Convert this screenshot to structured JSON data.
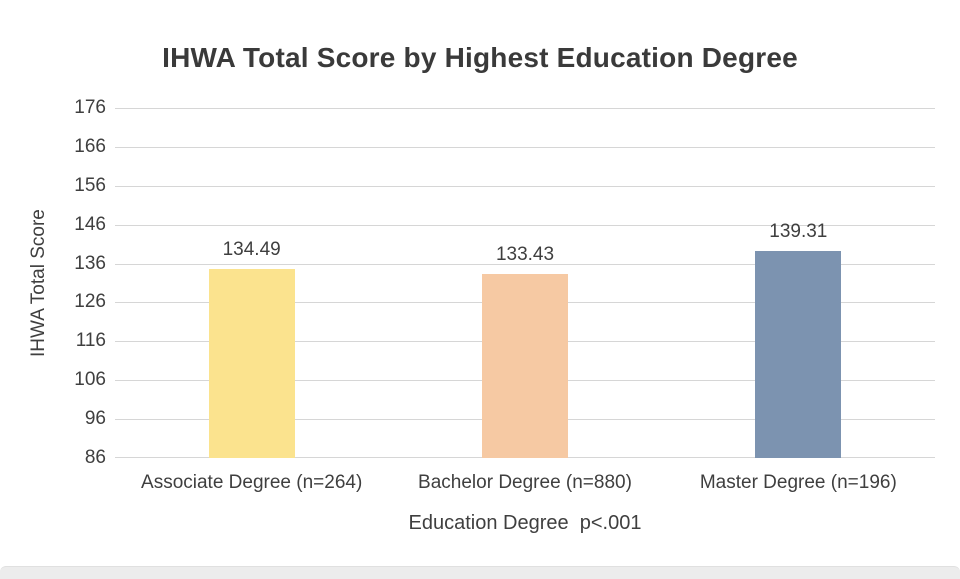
{
  "chart_data": {
    "type": "bar",
    "title": "IHWA Total Score by Highest Education Degree",
    "categories": [
      "Associate Degree (n=264)",
      "Bachelor Degree (n=880)",
      "Master Degree (n=196)"
    ],
    "values": [
      134.49,
      133.43,
      139.31
    ],
    "data_labels": [
      "134.49",
      "133.43",
      "139.31"
    ],
    "bar_colors": [
      "#FBE38E",
      "#F6C9A3",
      "#7C93B0"
    ],
    "xlabel": "Education Degree  p<.001",
    "ylabel": "IHWA Total Score",
    "ylim": [
      86,
      176
    ],
    "yticks": [
      86,
      96,
      106,
      116,
      126,
      136,
      146,
      156,
      166,
      176
    ],
    "grid": true,
    "legend": false,
    "gridline_color": "#d6d6d6",
    "text_color": "#3f3f3f"
  }
}
